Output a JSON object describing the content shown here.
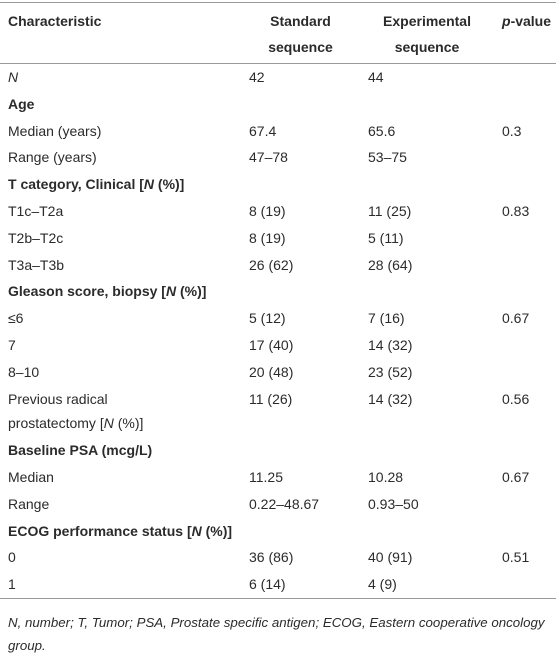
{
  "table": {
    "header": [
      "Characteristic",
      "Standard sequence",
      "Experimental sequence",
      [
        {
          "italic": "p"
        },
        "-value"
      ]
    ],
    "rows": [
      {
        "cells": [
          [
            {
              "italic": "N"
            }
          ],
          "42",
          "44",
          null
        ]
      },
      {
        "section": true,
        "cells": [
          "Age"
        ]
      },
      {
        "cells": [
          "Median (years)",
          "67.4",
          "65.6",
          "0.3"
        ]
      },
      {
        "cells": [
          "Range (years)",
          "47–78",
          "53–75",
          null
        ]
      },
      {
        "section": true,
        "cells": [
          [
            "T category, Clinical [",
            {
              "italic": "N"
            },
            " (%)]"
          ]
        ]
      },
      {
        "cells": [
          "T1c–T2a",
          "8 (19)",
          "11 (25)",
          "0.83"
        ]
      },
      {
        "cells": [
          "T2b–T2c",
          "8 (19)",
          "5 (11)",
          null
        ]
      },
      {
        "cells": [
          "T3a–T3b",
          "26 (62)",
          "28 (64)",
          null
        ]
      },
      {
        "section": true,
        "cells": [
          [
            "Gleason score, biopsy [",
            {
              "italic": "N"
            },
            " (%)]"
          ]
        ]
      },
      {
        "cells": [
          "≤6",
          "5 (12)",
          "7 (16)",
          "0.67"
        ]
      },
      {
        "cells": [
          "7",
          "17 (40)",
          "14 (32)",
          null
        ]
      },
      {
        "cells": [
          "8–10",
          "20 (48)",
          "23 (52)",
          null
        ]
      },
      {
        "cells": [
          [
            "Previous radical prostatectomy [",
            {
              "italic": "N"
            },
            " (%)]"
          ],
          "11 (26)",
          "14 (32)",
          "0.56"
        ]
      },
      {
        "section": true,
        "cells": [
          "Baseline PSA (mcg/L)"
        ]
      },
      {
        "cells": [
          "Median",
          "11.25",
          "10.28",
          "0.67"
        ]
      },
      {
        "cells": [
          "Range",
          "0.22–48.67",
          "0.93–50",
          null
        ]
      },
      {
        "section": true,
        "cells": [
          [
            "ECOG performance status [",
            {
              "italic": "N"
            },
            " (%)]"
          ]
        ]
      },
      {
        "cells": [
          "0",
          "36 (86)",
          "40 (91)",
          "0.51"
        ]
      },
      {
        "cells": [
          "1",
          "6 (14)",
          "4 (9)",
          null
        ]
      }
    ]
  },
  "footnote": "N, number; T, Tumor; PSA, Prostate specific antigen; ECOG, Eastern cooperative oncology group."
}
